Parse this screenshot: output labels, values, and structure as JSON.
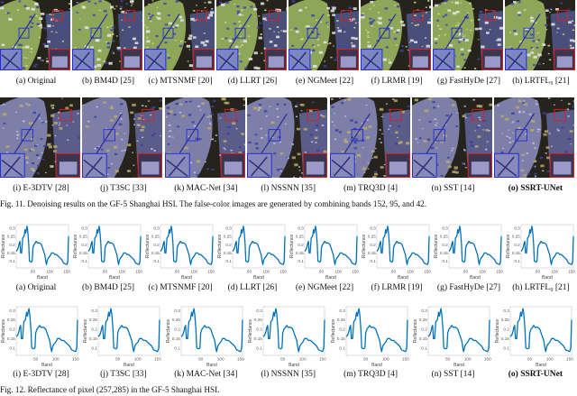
{
  "figure11": {
    "caption": "Fig. 11.  Denoising results on the GF-5 Shanghai HSI. The false-color images are generated by combining bands 152, 95, and 42.",
    "row1": [
      {
        "label": "(a) Original"
      },
      {
        "label": "(b) BM4D [25]"
      },
      {
        "label": "(c) MTSNMF [20]"
      },
      {
        "label": "(d) LLRT [26]"
      },
      {
        "label": "(e) NGMeet [22]"
      },
      {
        "label": "(f) LRMR [19]"
      },
      {
        "label": "(g) FastHyDe [27]"
      },
      {
        "label": "(h) LRTFL₀ [21]"
      }
    ],
    "row2": [
      {
        "label": "(i) E-3DTV [28]"
      },
      {
        "label": "(j) T3SC [33]"
      },
      {
        "label": "(k) MAC-Net [34]"
      },
      {
        "label": "(l) NSSNN [35]"
      },
      {
        "label": "(m) TRQ3D [4]"
      },
      {
        "label": "(n) SST [14]"
      },
      {
        "label": "(o) SSRT-UNet",
        "bold": true
      }
    ],
    "box_colors": {
      "zoom_a": "#1e2de0",
      "zoom_b": "#e01e1e"
    }
  },
  "figure12": {
    "caption": "Fig. 12.  Reflectance of pixel (257,285) in the GF-5 Shanghai HSI.",
    "chart_data": {
      "type": "line",
      "xlabel": "Band",
      "ylabel": "Reflectance",
      "xlim": [
        1,
        155
      ],
      "ylim": [
        0.06,
        0.32
      ],
      "xticks": [
        50,
        100,
        150
      ],
      "yticks": [
        0.1,
        0.15,
        0.2,
        0.25,
        0.3
      ],
      "line_color": "#0072bd",
      "x": [
        1,
        5,
        8,
        10,
        12,
        14,
        17,
        20,
        24,
        27,
        29,
        31,
        33,
        35,
        38,
        40,
        45,
        48,
        50,
        53,
        57,
        60,
        63,
        67,
        70,
        75,
        80,
        85,
        88,
        90,
        93,
        96,
        100,
        105,
        110,
        115,
        120,
        125,
        130,
        135,
        140,
        145,
        150,
        153,
        155
      ],
      "y": [
        0.16,
        0.17,
        0.19,
        0.21,
        0.22,
        0.15,
        0.15,
        0.24,
        0.25,
        0.29,
        0.27,
        0.29,
        0.31,
        0.28,
        0.2,
        0.1,
        0.095,
        0.1,
        0.18,
        0.2,
        0.21,
        0.22,
        0.21,
        0.21,
        0.21,
        0.2,
        0.17,
        0.14,
        0.1,
        0.08,
        0.11,
        0.12,
        0.13,
        0.15,
        0.15,
        0.14,
        0.14,
        0.13,
        0.12,
        0.11,
        0.09,
        0.085,
        0.08,
        0.1,
        0.25
      ]
    },
    "row1": [
      {
        "label": "(a) Original"
      },
      {
        "label": "(b) BM4D [25]"
      },
      {
        "label": "(c) MTSNMF [20]"
      },
      {
        "label": "(d) LLRT [26]"
      },
      {
        "label": "(e) NGMeet [22]"
      },
      {
        "label": "(f) LRMR [19]"
      },
      {
        "label": "(g) FastHyDe [27]"
      },
      {
        "label": "(h) LRTFL₀ [21]"
      }
    ],
    "row2": [
      {
        "label": "(i) E-3DTV [28]"
      },
      {
        "label": "(j) T3SC [33]"
      },
      {
        "label": "(k) MAC-Net [34]"
      },
      {
        "label": "(l) NSSNN [35]"
      },
      {
        "label": "(m) TRQ3D [4]"
      },
      {
        "label": "(n) SST [14]"
      },
      {
        "label": "(o) SSRT-UNet",
        "bold": true
      }
    ]
  }
}
